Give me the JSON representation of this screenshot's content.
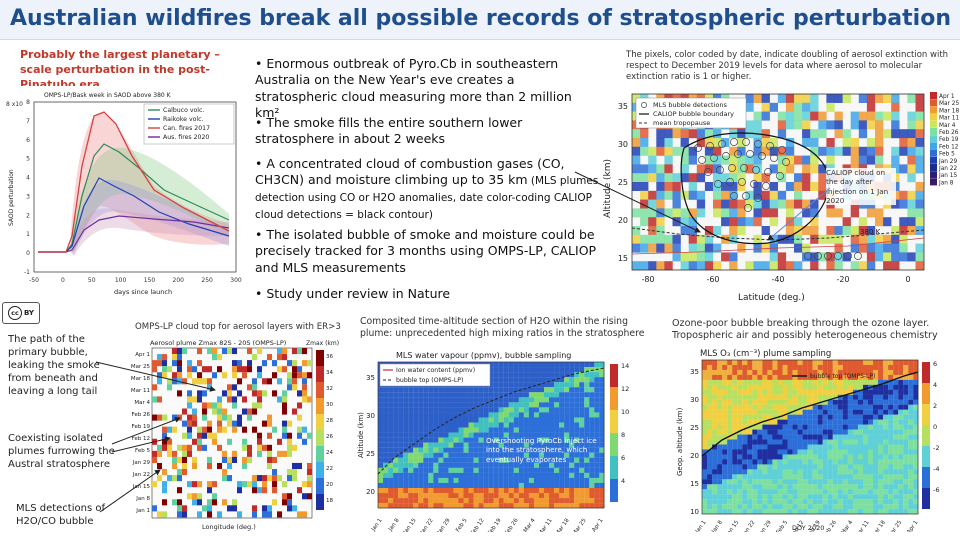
{
  "title": "Australian wildfires break all possible records of stratospheric perturbation",
  "left_heading": "Probably the largest planetary –scale perturbation in the post-Pinatubo era",
  "bullets": [
    {
      "text": "• Enormous outbreak of Pyro.Cb in southeastern Australia on the New Year's eve creates a stratospheric cloud measuring more than 2 million km²"
    },
    {
      "text": "• The smoke fills the entire southern lower stratosphere in about 2 weeks"
    },
    {
      "text": "• A concentrated cloud of combustion gases (CO, CH3CN) and moisture climbing up to 35 km",
      "small": " (MLS plumes detection using CO or H2O anomalies, date color-coding CALIOP cloud detections = black contour)"
    },
    {
      "text": "• The isolated bubble of smoke and moisture could be precisely tracked for 3 months using OMPS-LP, CALIOP and MLS measurements"
    },
    {
      "text": "• Study under review in Nature"
    }
  ],
  "pixels_caption": "The pixels, color coded by date, indicate doubling of aerosol extinction with respect to December 2019 levels for data where aerosol to molecular extinction ratio is 1 or higher.",
  "side_notes": {
    "primary": "The path of the primary bubble, leaking the smoke from beneath and leaving a long tail",
    "coexisting": "Coexisting isolated plumes furrowing the Austral stratosphere",
    "mls": "MLS detections of H2O/CO bubble"
  },
  "captions": {
    "omps": "OMPS-LP cloud top for aerosol layers with ER>3",
    "h2o": "Composited time-altitude section of H2O within the rising plume: unprecedented high mixing ratios in the stratosphere",
    "ozone": "Ozone-poor bubble breaking through the ozone layer. Tropospheric air and possibly heterogeneous chemistry"
  },
  "cc_badge": {
    "main": "cc",
    "sub": "BY"
  },
  "fig_saod": {
    "legend_title": "OMPS-LP/Bask week in SAOD above 380 K",
    "legend": [
      "Calbuco volc.",
      "Raikoke volc.",
      "Can. fires 2017",
      "Aus. fires 2020"
    ],
    "ylabel": "SAOD perturbation",
    "xlabel": "days since launch",
    "exp_label": "8 x10",
    "yticks": [
      "8",
      "7",
      "6",
      "5",
      "4",
      "3",
      "2",
      "1",
      "0",
      "-1"
    ],
    "xticks": [
      "-50",
      "0",
      "50",
      "100",
      "150",
      "200",
      "250",
      "300"
    ],
    "colors": [
      "#2e8b57",
      "#1f3fb5",
      "#d94040",
      "#6a2fa0"
    ]
  },
  "fig_map": {
    "legend": [
      "MLS bubble detections",
      "CALIOP bubble boundary",
      "mean tropopause"
    ],
    "yaxis_label": "Altitude (km)",
    "xaxis_label": "Latitude (deg.)",
    "yticks": [
      "35",
      "30",
      "25",
      "20",
      "15"
    ],
    "xticks": [
      "-80",
      "-60",
      "-40",
      "-20",
      "0"
    ],
    "k_label": "380 K",
    "caliop_note": "CALIOP cloud on the day after injection on 1 Jan 2020",
    "date_legend": [
      "Apr 1",
      "Mar 25",
      "Mar 18",
      "Mar 11",
      "Mar 4",
      "Feb 26",
      "Feb 19",
      "Feb 12",
      "Feb 5",
      "Jan 29",
      "Jan 22",
      "Jan 15",
      "Jan 8"
    ]
  },
  "fig_omps": {
    "title": "Aerosol plume Zmax 82S - 20S (OMPS-LP)",
    "zlabel": "Zmax (km)",
    "xlabel": "Longitude (deg.)",
    "dates": [
      "Apr 1",
      "Mar 25",
      "Mar 18",
      "Mar 11",
      "Mar 4",
      "Feb 26",
      "Feb 19",
      "Feb 12",
      "Feb 5",
      "Jan 29",
      "Jan 22",
      "Jan 15",
      "Jan 8",
      "Jan 1"
    ],
    "scale": [
      "36",
      "34",
      "32",
      "30",
      "28",
      "26",
      "24",
      "22",
      "20",
      "18"
    ]
  },
  "fig_h2o": {
    "title": "MLS water vapour (ppmv), bubble sampling",
    "legend": [
      "Ion water content (ppmv)",
      "bubble top (OMPS-LP)"
    ],
    "ylabel": "Altitude (km)",
    "yticks": [
      "35",
      "30",
      "25",
      "20"
    ],
    "colorbar": [
      "14",
      "12",
      "10",
      "8",
      "6",
      "4"
    ],
    "xticks": [
      "Jan 1",
      "Jan 8",
      "Jan 15",
      "Jan 22",
      "Jan 29",
      "Feb 5",
      "Feb 12",
      "Feb 19",
      "Feb 26",
      "Mar 4",
      "Mar 11",
      "Mar 18",
      "Mar 25",
      "Apr 1"
    ],
    "annotation": "Overshooting PyroCb inject ice into the stratosphere, which eventually evaporates"
  },
  "fig_o3": {
    "title": "MLS O₃ (cm⁻³) plume sampling",
    "legend": "bubble top (OMPS-LP)",
    "ylabel": "Geop. altitude (km)",
    "yticks": [
      "35",
      "30",
      "25",
      "20",
      "15",
      "10"
    ],
    "colorbar": [
      "6",
      "4",
      "2",
      "0",
      "-2",
      "-4",
      "-6"
    ],
    "xticks": [
      "Jan 1",
      "Jan 8",
      "Jan 15",
      "Jan 22",
      "Jan 29",
      "Feb 5",
      "Feb 12",
      "Feb 19",
      "Feb 26",
      "Mar 4",
      "Mar 11",
      "Mar 18",
      "Mar 25",
      "Apr 1"
    ],
    "xlabel": "DOY 2020"
  }
}
